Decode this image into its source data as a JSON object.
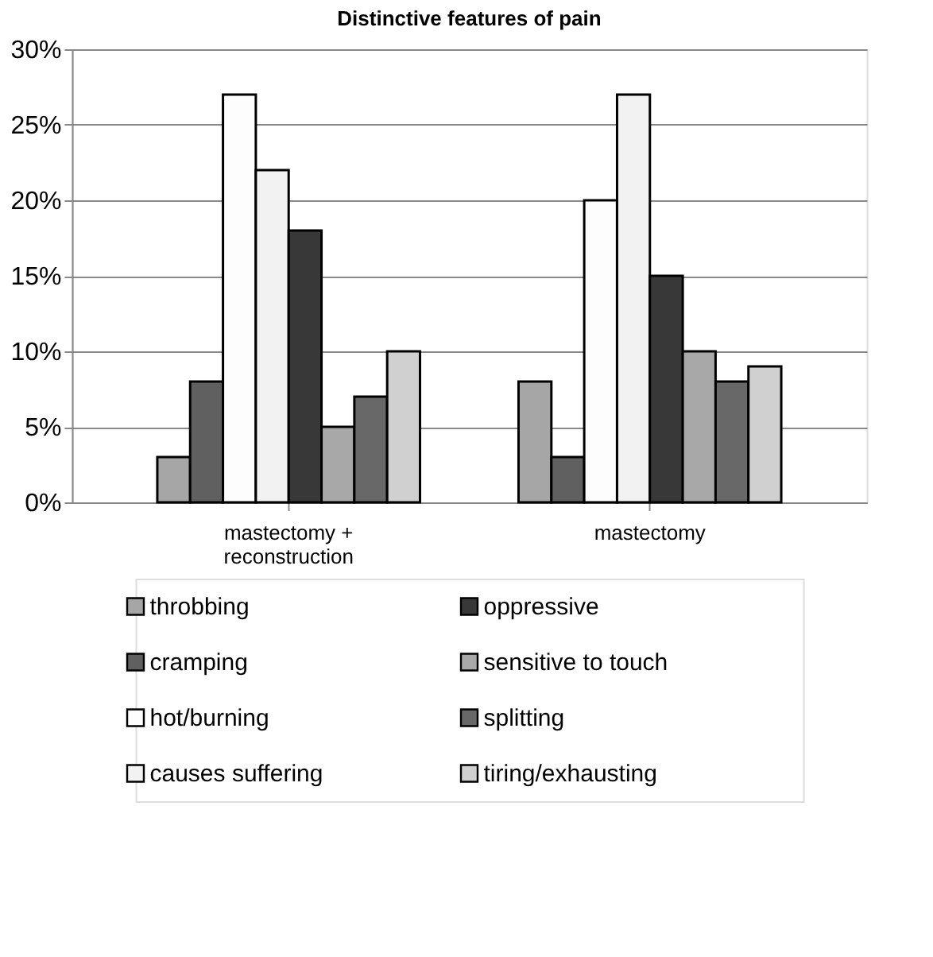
{
  "chart_data": {
    "type": "bar",
    "title": "Distinctive features of pain",
    "categories": [
      "mastectomy + reconstruction",
      "mastectomy"
    ],
    "series": [
      {
        "name": "throbbing",
        "color": "#a6a6a6",
        "values": [
          3,
          8
        ]
      },
      {
        "name": "cramping",
        "color": "#606060",
        "values": [
          8,
          3
        ]
      },
      {
        "name": "hot/burning",
        "color": "#fdfdfd",
        "values": [
          27,
          20
        ]
      },
      {
        "name": "causes suffering",
        "color": "#f2f2f2",
        "values": [
          22,
          27
        ]
      },
      {
        "name": "oppressive",
        "color": "#383838",
        "values": [
          18,
          15
        ]
      },
      {
        "name": "sensitive to touch",
        "color": "#a8a8a8",
        "values": [
          5,
          10
        ]
      },
      {
        "name": "splitting",
        "color": "#686868",
        "values": [
          7,
          8
        ]
      },
      {
        "name": "tiring/exhausting",
        "color": "#d0d0d0",
        "values": [
          10,
          9
        ]
      }
    ],
    "ylim": [
      0,
      30
    ],
    "yticks": [
      {
        "value": 0,
        "label": "0%"
      },
      {
        "value": 5,
        "label": "5%"
      },
      {
        "value": 10,
        "label": "10%"
      },
      {
        "value": 15,
        "label": "15%"
      },
      {
        "value": 20,
        "label": "20%"
      },
      {
        "value": 25,
        "label": "25%"
      },
      {
        "value": 30,
        "label": "30%"
      }
    ],
    "grid": "y",
    "legend": "bottom"
  }
}
